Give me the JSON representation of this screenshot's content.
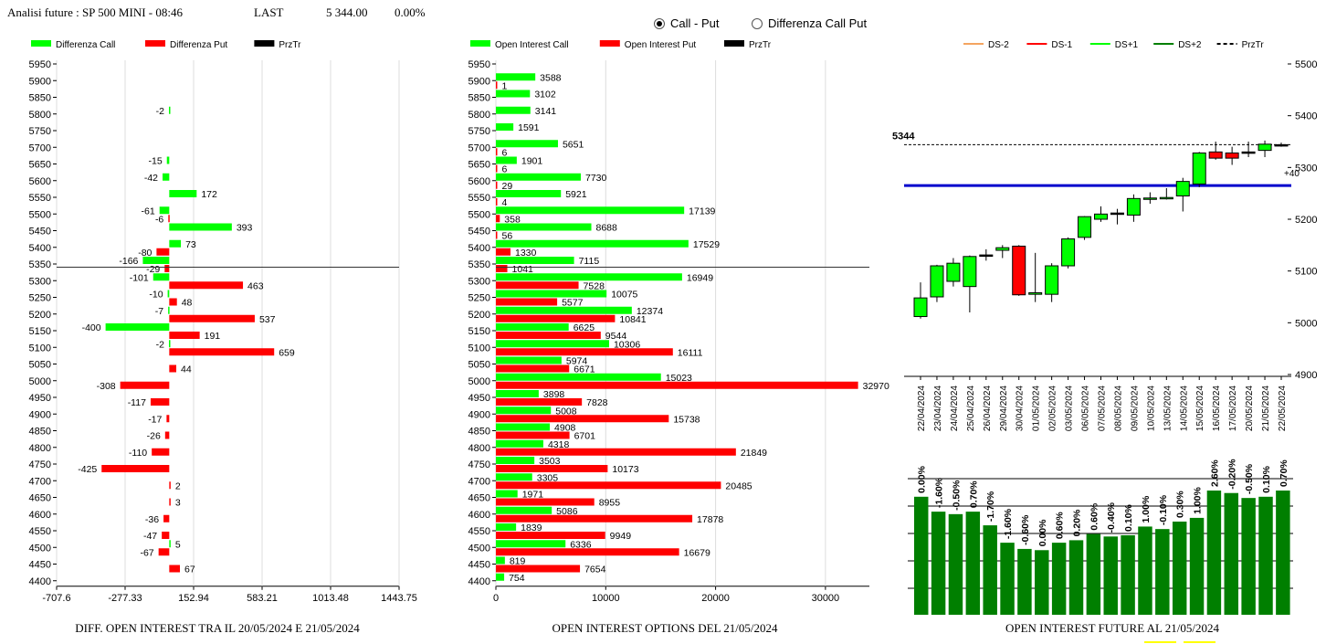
{
  "header": {
    "title": "Analisi future : SP 500 MINI - 08:46",
    "last_label": "LAST",
    "last_value": "5 344.00",
    "change": "0.00%"
  },
  "radio": {
    "option1": "Call - Put",
    "option2": "Differenza Call Put",
    "selected": "Call - Put"
  },
  "colors": {
    "green": "#00ff00",
    "red": "#ff0000",
    "dark_green": "#007f00",
    "blue": "#0000cc",
    "black": "#000000"
  },
  "captions": {
    "left": "DIFF. OPEN INTEREST TRA IL 20/05/2024 E 21/05/2024",
    "middle": "OPEN INTEREST OPTIONS DEL 21/05/2024",
    "right": "OPEN INTEREST FUTURE AL 21/05/2024"
  },
  "chart_data": [
    {
      "type": "bar",
      "orientation": "horizontal",
      "legend": [
        "Differenza Call",
        "Differenza Put",
        "PrzTr"
      ],
      "strikes": [
        "5950",
        "5900",
        "5850",
        "5800",
        "5750",
        "5700",
        "5650",
        "5600",
        "5550",
        "5500",
        "5450",
        "5400",
        "5350",
        "5300",
        "5250",
        "5200",
        "5150",
        "5100",
        "5050",
        "5000",
        "4950",
        "4900",
        "4850",
        "4800",
        "4750",
        "4700",
        "4650",
        "4600",
        "4550",
        "4500",
        "4450",
        "4400"
      ],
      "series": [
        {
          "name": "Differenza Call",
          "values": [
            null,
            null,
            null,
            -2,
            null,
            null,
            -15,
            -42,
            172,
            -61,
            393,
            73,
            -166,
            -101,
            -10,
            -7,
            -400,
            -2,
            null,
            null,
            null,
            null,
            null,
            null,
            null,
            null,
            null,
            null,
            null,
            5,
            null,
            null
          ]
        },
        {
          "name": "Differenza Put",
          "values": [
            null,
            null,
            null,
            null,
            null,
            null,
            null,
            null,
            null,
            -6,
            null,
            -80,
            -29,
            463,
            48,
            537,
            191,
            659,
            44,
            -308,
            -117,
            -17,
            -26,
            -110,
            -425,
            2,
            3,
            -36,
            -47,
            -67,
            67,
            null
          ]
        }
      ],
      "xticks": [
        "-707.6",
        "-277.33",
        "152.94",
        "583.21",
        "1013.48",
        "1443.75"
      ],
      "xlim": [
        -707.6,
        1443.75
      ],
      "przTr": 5344
    },
    {
      "type": "bar",
      "orientation": "horizontal",
      "legend": [
        "Open Interest Call",
        "Open Interest Put",
        "PrzTr"
      ],
      "strikes": [
        "5950",
        "5900",
        "5850",
        "5800",
        "5750",
        "5700",
        "5650",
        "5600",
        "5550",
        "5500",
        "5450",
        "5400",
        "5350",
        "5300",
        "5250",
        "5200",
        "5150",
        "5100",
        "5050",
        "5000",
        "4950",
        "4900",
        "4850",
        "4800",
        "4750",
        "4700",
        "4650",
        "4600",
        "4550",
        "4500",
        "4450",
        "4400"
      ],
      "series": [
        {
          "name": "Open Interest Call",
          "values": [
            null,
            3588,
            3102,
            3141,
            1591,
            5651,
            1901,
            7730,
            5921,
            17139,
            8688,
            17529,
            7115,
            16949,
            10075,
            12374,
            6625,
            10306,
            5974,
            15023,
            3898,
            5008,
            4908,
            4318,
            3503,
            3305,
            1971,
            5086,
            1839,
            6336,
            819,
            754
          ]
        },
        {
          "name": "Open Interest Put",
          "values": [
            null,
            1,
            null,
            null,
            null,
            6,
            6,
            29,
            4,
            358,
            56,
            1330,
            1041,
            7528,
            5577,
            10841,
            9544,
            16111,
            6671,
            32970,
            7828,
            15738,
            6701,
            21849,
            10173,
            20485,
            8955,
            17878,
            9949,
            16679,
            7654,
            null
          ]
        }
      ],
      "xticks": [
        "0",
        "10000",
        "20000",
        "30000"
      ],
      "xlim": [
        0,
        34000
      ],
      "przTr": 5344
    },
    {
      "type": "candlestick",
      "legend": [
        "DS-2",
        "DS-1",
        "DS+1",
        "DS+2",
        "PrzTr"
      ],
      "legend_colors": [
        "#f4a460",
        "#ff0000",
        "#00ff00",
        "#007f00",
        "#000000"
      ],
      "dates": [
        "22/04/2024",
        "23/04/2024",
        "24/04/2024",
        "25/04/2024",
        "26/04/2024",
        "29/04/2024",
        "30/04/2024",
        "01/05/2024",
        "02/05/2024",
        "03/05/2024",
        "06/05/2024",
        "07/05/2024",
        "08/05/2024",
        "09/05/2024",
        "10/05/2024",
        "13/05/2024",
        "14/05/2024",
        "15/05/2024",
        "16/05/2024",
        "17/05/2024",
        "20/05/2024",
        "21/05/2024",
        "22/05/2024"
      ],
      "open": [
        5012,
        5050,
        5080,
        5070,
        5131,
        5140,
        5148,
        5055,
        5055,
        5110,
        5165,
        5200,
        5212,
        5208,
        5240,
        5240,
        5245,
        5268,
        5330,
        5328,
        5330,
        5333,
        5344
      ],
      "close": [
        5048,
        5110,
        5115,
        5128,
        5131,
        5145,
        5054,
        5058,
        5110,
        5162,
        5205,
        5210,
        5212,
        5240,
        5241,
        5242,
        5273,
        5328,
        5318,
        5318,
        5330,
        5345,
        5344
      ],
      "high": [
        5078,
        5112,
        5125,
        5130,
        5142,
        5150,
        5150,
        5135,
        5115,
        5165,
        5206,
        5225,
        5220,
        5248,
        5252,
        5260,
        5280,
        5330,
        5350,
        5340,
        5350,
        5352,
        5348
      ],
      "low": [
        5008,
        5040,
        5070,
        5020,
        5120,
        5125,
        5052,
        5040,
        5040,
        5105,
        5160,
        5195,
        5190,
        5195,
        5230,
        5238,
        5215,
        5262,
        5315,
        5305,
        5320,
        5320,
        5340
      ],
      "yticks": [
        "5500",
        "5400",
        "5300",
        "5200",
        "5100",
        "5000",
        "4900"
      ],
      "ylim": [
        4900,
        5500
      ],
      "last_label": "5344",
      "level_line": 5265,
      "level_label": "+40"
    },
    {
      "type": "bar",
      "bar_values": [
        95,
        83,
        81,
        83,
        72,
        58,
        53,
        52,
        58,
        60,
        65,
        63,
        64,
        71,
        69,
        75,
        78,
        100,
        98,
        94,
        95,
        100
      ],
      "labels": [
        "0.00%",
        "-1.60%",
        "-0.50%",
        "0.70%",
        "-1.70%",
        "-1.60%",
        "-0.60%",
        "0.00%",
        "0.60%",
        "0.20%",
        "0.60%",
        "-0.40%",
        "0.10%",
        "1.00%",
        "-0.10%",
        "0.30%",
        "1.00%",
        "2.60%",
        "-0.20%",
        "-0.50%",
        "0.10%",
        "0.70%"
      ]
    }
  ]
}
